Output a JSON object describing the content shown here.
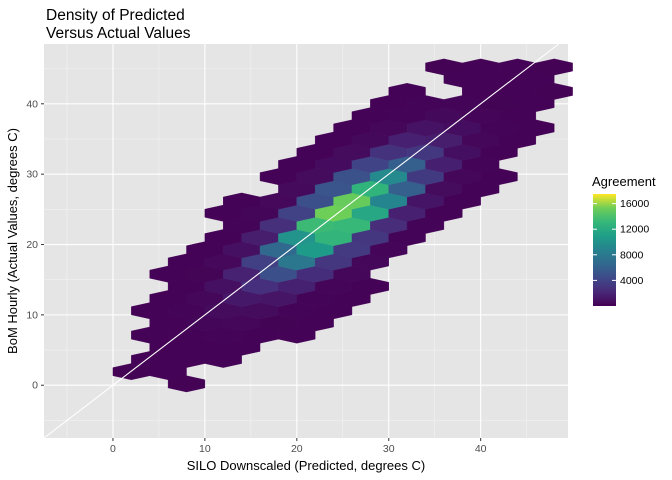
{
  "chart_data": {
    "type": "heatmap",
    "subtype": "hexbin",
    "title_lines": [
      "Density of Predicted",
      "Versus Actual Values"
    ],
    "xlabel": "SILO Downscaled (Predicted, degrees C)",
    "ylabel": "BoM Hourly (Actual Values, degrees C)",
    "xlim": [
      -7.5,
      49.5
    ],
    "ylim": [
      -7.5,
      48.5
    ],
    "x_ticks": [
      0,
      10,
      20,
      30,
      40
    ],
    "y_ticks": [
      0,
      10,
      20,
      30,
      40
    ],
    "grid": true,
    "background": "#e5e5e5",
    "reference_line": {
      "slope": 1,
      "intercept": 0,
      "color": "#ffffff"
    },
    "legend": {
      "title": "Agreement",
      "ticks": [
        4000,
        8000,
        12000,
        16000
      ],
      "range": [
        0,
        17500
      ],
      "placement": "right",
      "colormap": "viridis"
    },
    "distribution": {
      "center": [
        25,
        24
      ],
      "spread_along_identity_sd": 7,
      "spread_across_identity_sd": 2.3,
      "peak_count": 16800,
      "gaps": [
        [
          35,
          43
        ],
        [
          6,
          -3
        ],
        [
          29,
          7.5
        ]
      ]
    }
  }
}
